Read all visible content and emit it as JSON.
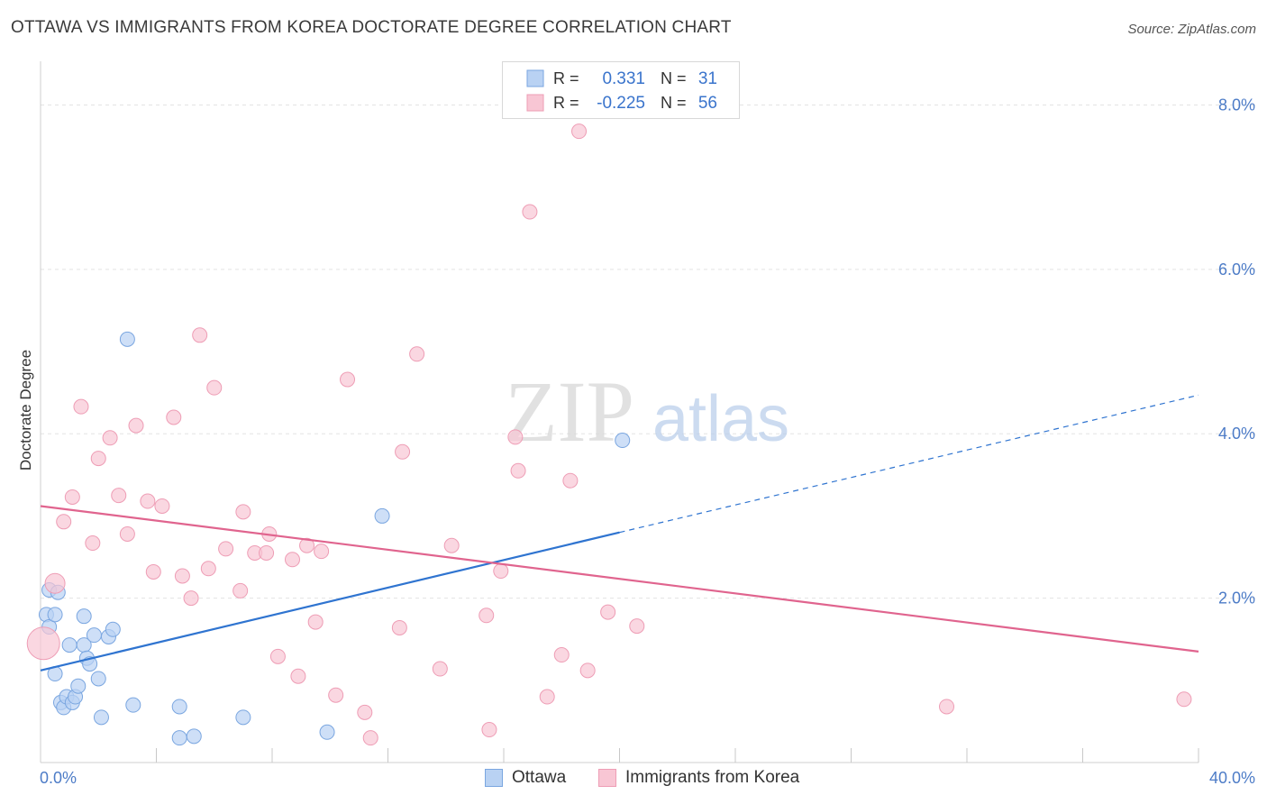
{
  "title": "OTTAWA VS IMMIGRANTS FROM KOREA DOCTORATE DEGREE CORRELATION CHART",
  "source": "Source: ZipAtlas.com",
  "watermark": {
    "zip": "ZIP",
    "atlas": "atlas"
  },
  "colors": {
    "ottawa_fill": "#b9d2f3",
    "ottawa_stroke": "#7aa6e0",
    "ottawa_line": "#2f74d0",
    "korea_fill": "#f8c6d4",
    "korea_stroke": "#ee9db5",
    "korea_line": "#e0648e",
    "axis_text": "#4d7cc7",
    "grid": "#e3e3e3"
  },
  "legend": [
    {
      "name": "Ottawa",
      "r_label": "R =",
      "r_value": "0.331",
      "n_label": "N =",
      "n_value": "31"
    },
    {
      "name": "Immigrants from Korea",
      "r_label": "R =",
      "r_value": "-0.225",
      "n_label": "N =",
      "n_value": "56"
    }
  ],
  "chart_data": {
    "type": "scatter",
    "title": "OTTAWA VS IMMIGRANTS FROM KOREA DOCTORATE DEGREE CORRELATION CHART",
    "xlabel": "",
    "ylabel": "Doctorate Degree",
    "xlim": [
      0,
      40
    ],
    "ylim": [
      0,
      8.4
    ],
    "x_tick_labels": [
      "0.0%",
      "40.0%"
    ],
    "y_ticks": [
      2,
      4,
      6,
      8
    ],
    "y_tick_labels": [
      "2.0%",
      "4.0%",
      "6.0%",
      "8.0%"
    ],
    "grid": true,
    "series": [
      {
        "name": "Ottawa",
        "points": [
          [
            0.2,
            1.8
          ],
          [
            0.3,
            1.65
          ],
          [
            0.3,
            2.1
          ],
          [
            0.5,
            1.8
          ],
          [
            0.5,
            1.08
          ],
          [
            0.6,
            2.07
          ],
          [
            0.7,
            0.73
          ],
          [
            0.8,
            0.67
          ],
          [
            0.9,
            0.8
          ],
          [
            1.0,
            1.43
          ],
          [
            1.1,
            0.73
          ],
          [
            1.2,
            0.8
          ],
          [
            1.3,
            0.93
          ],
          [
            1.5,
            1.43
          ],
          [
            1.5,
            1.78
          ],
          [
            1.6,
            1.27
          ],
          [
            1.7,
            1.2
          ],
          [
            1.85,
            1.55
          ],
          [
            2.0,
            1.02
          ],
          [
            2.1,
            0.55
          ],
          [
            2.35,
            1.53
          ],
          [
            2.5,
            1.62
          ],
          [
            3.0,
            5.15
          ],
          [
            3.2,
            0.7
          ],
          [
            4.8,
            0.3
          ],
          [
            4.8,
            0.68
          ],
          [
            5.3,
            0.32
          ],
          [
            7.0,
            0.55
          ],
          [
            9.9,
            0.37
          ],
          [
            11.8,
            3.0
          ],
          [
            20.1,
            3.92
          ]
        ],
        "trend": {
          "x0": 0,
          "y0": 1.12,
          "x1": 20,
          "y1": 2.8,
          "dashed_to_x": 40,
          "dashed_to_y": 4.47
        }
      },
      {
        "name": "Immigrants from Korea",
        "points": [
          [
            0.1,
            1.45
          ],
          [
            0.5,
            2.18
          ],
          [
            0.8,
            2.93
          ],
          [
            1.1,
            3.23
          ],
          [
            1.4,
            4.33
          ],
          [
            1.8,
            2.67
          ],
          [
            2.0,
            3.7
          ],
          [
            2.4,
            3.95
          ],
          [
            2.7,
            3.25
          ],
          [
            3.0,
            2.78
          ],
          [
            3.3,
            4.1
          ],
          [
            3.7,
            3.18
          ],
          [
            3.9,
            2.32
          ],
          [
            4.2,
            3.12
          ],
          [
            4.6,
            4.2
          ],
          [
            4.9,
            2.27
          ],
          [
            5.2,
            2.0
          ],
          [
            5.5,
            5.2
          ],
          [
            5.8,
            2.36
          ],
          [
            6.0,
            4.56
          ],
          [
            6.4,
            2.6
          ],
          [
            6.9,
            2.09
          ],
          [
            7.0,
            3.05
          ],
          [
            7.4,
            2.55
          ],
          [
            7.8,
            2.55
          ],
          [
            7.9,
            2.78
          ],
          [
            8.2,
            1.29
          ],
          [
            8.7,
            2.47
          ],
          [
            8.9,
            1.05
          ],
          [
            9.2,
            2.64
          ],
          [
            9.5,
            1.71
          ],
          [
            9.7,
            2.57
          ],
          [
            10.2,
            0.82
          ],
          [
            10.6,
            4.66
          ],
          [
            11.2,
            0.61
          ],
          [
            11.4,
            0.3
          ],
          [
            12.4,
            1.64
          ],
          [
            12.5,
            3.78
          ],
          [
            13.0,
            4.97
          ],
          [
            13.8,
            1.14
          ],
          [
            14.2,
            2.64
          ],
          [
            15.4,
            1.79
          ],
          [
            15.5,
            0.4
          ],
          [
            15.9,
            2.33
          ],
          [
            16.4,
            3.96
          ],
          [
            16.5,
            3.55
          ],
          [
            16.9,
            6.7
          ],
          [
            17.5,
            0.8
          ],
          [
            18.0,
            1.31
          ],
          [
            18.3,
            3.43
          ],
          [
            18.6,
            7.68
          ],
          [
            18.9,
            1.12
          ],
          [
            19.6,
            1.83
          ],
          [
            20.6,
            1.66
          ],
          [
            31.3,
            0.68
          ],
          [
            39.5,
            0.77
          ]
        ],
        "trend": {
          "x0": 0,
          "y0": 3.12,
          "x1": 40,
          "y1": 1.35
        }
      }
    ]
  }
}
